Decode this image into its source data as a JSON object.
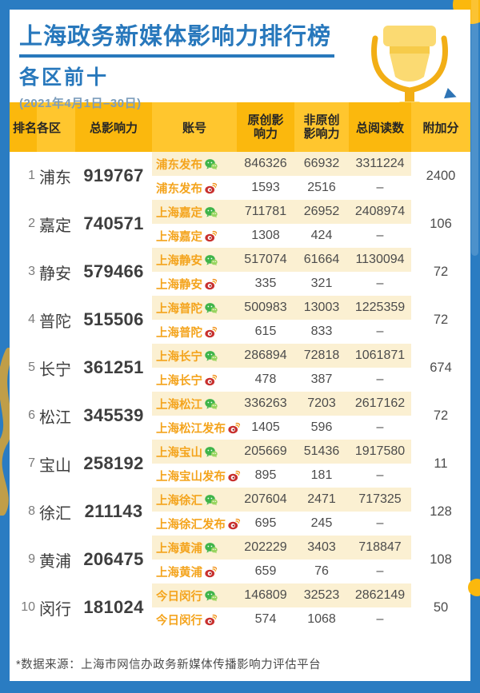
{
  "header": {
    "title": "上海政务新媒体影响力排行榜",
    "subtitle": "各区前十",
    "date_range": "(2021年4月1日–30日)",
    "trophy_icon": "trophy-icon"
  },
  "table": {
    "columns": [
      "排名",
      "各区",
      "总影响力",
      "账号",
      "原创影响力",
      "非原创影响力",
      "总阅读数",
      "附加分"
    ],
    "column_keys": [
      "rank",
      "district",
      "total-influence",
      "account",
      "original-influence",
      "non-original-influence",
      "total-reads",
      "bonus"
    ],
    "rows": [
      {
        "rank": "1",
        "district": "浦东",
        "total": "919767",
        "bonus": "2400",
        "accounts": [
          {
            "name": "浦东发布",
            "platform": "wechat",
            "original": "846326",
            "non_original": "66932",
            "reads": "3311224"
          },
          {
            "name": "浦东发布",
            "platform": "weibo",
            "original": "1593",
            "non_original": "2516",
            "reads": "–"
          }
        ]
      },
      {
        "rank": "2",
        "district": "嘉定",
        "total": "740571",
        "bonus": "106",
        "accounts": [
          {
            "name": "上海嘉定",
            "platform": "wechat",
            "original": "711781",
            "non_original": "26952",
            "reads": "2408974"
          },
          {
            "name": "上海嘉定",
            "platform": "weibo",
            "original": "1308",
            "non_original": "424",
            "reads": "–"
          }
        ]
      },
      {
        "rank": "3",
        "district": "静安",
        "total": "579466",
        "bonus": "72",
        "accounts": [
          {
            "name": "上海静安",
            "platform": "wechat",
            "original": "517074",
            "non_original": "61664",
            "reads": "1130094"
          },
          {
            "name": "上海静安",
            "platform": "weibo",
            "original": "335",
            "non_original": "321",
            "reads": "–"
          }
        ]
      },
      {
        "rank": "4",
        "district": "普陀",
        "total": "515506",
        "bonus": "72",
        "accounts": [
          {
            "name": "上海普陀",
            "platform": "wechat",
            "original": "500983",
            "non_original": "13003",
            "reads": "1225359"
          },
          {
            "name": "上海普陀",
            "platform": "weibo",
            "original": "615",
            "non_original": "833",
            "reads": "–"
          }
        ]
      },
      {
        "rank": "5",
        "district": "长宁",
        "total": "361251",
        "bonus": "674",
        "accounts": [
          {
            "name": "上海长宁",
            "platform": "wechat",
            "original": "286894",
            "non_original": "72818",
            "reads": "1061871"
          },
          {
            "name": "上海长宁",
            "platform": "weibo",
            "original": "478",
            "non_original": "387",
            "reads": "–"
          }
        ]
      },
      {
        "rank": "6",
        "district": "松江",
        "total": "345539",
        "bonus": "72",
        "accounts": [
          {
            "name": "上海松江",
            "platform": "wechat",
            "original": "336263",
            "non_original": "7203",
            "reads": "2617162"
          },
          {
            "name": "上海松江发布",
            "platform": "weibo",
            "original": "1405",
            "non_original": "596",
            "reads": "–"
          }
        ]
      },
      {
        "rank": "7",
        "district": "宝山",
        "total": "258192",
        "bonus": "11",
        "accounts": [
          {
            "name": "上海宝山",
            "platform": "wechat",
            "original": "205669",
            "non_original": "51436",
            "reads": "1917580"
          },
          {
            "name": "上海宝山发布",
            "platform": "weibo",
            "original": "895",
            "non_original": "181",
            "reads": "–"
          }
        ]
      },
      {
        "rank": "8",
        "district": "徐汇",
        "total": "211143",
        "bonus": "128",
        "accounts": [
          {
            "name": "上海徐汇",
            "platform": "wechat",
            "original": "207604",
            "non_original": "2471",
            "reads": "717325"
          },
          {
            "name": "上海徐汇发布",
            "platform": "weibo",
            "original": "695",
            "non_original": "245",
            "reads": "–"
          }
        ]
      },
      {
        "rank": "9",
        "district": "黄浦",
        "total": "206475",
        "bonus": "108",
        "accounts": [
          {
            "name": "上海黄浦",
            "platform": "wechat",
            "original": "202229",
            "non_original": "3403",
            "reads": "718847"
          },
          {
            "name": "上海黄浦",
            "platform": "weibo",
            "original": "659",
            "non_original": "76",
            "reads": "–"
          }
        ]
      },
      {
        "rank": "10",
        "district": "闵行",
        "total": "181024",
        "bonus": "50",
        "accounts": [
          {
            "name": "今日闵行",
            "platform": "wechat",
            "original": "146809",
            "non_original": "32523",
            "reads": "2862149"
          },
          {
            "name": "今日闵行",
            "platform": "weibo",
            "original": "574",
            "non_original": "1068",
            "reads": "–"
          }
        ]
      }
    ]
  },
  "footer": {
    "source_note": "*数据来源：上海市网信办政务新媒体传播影响力评估平台"
  },
  "icons": {
    "wechat": "wechat-icon",
    "weibo": "weibo-icon",
    "trophy": "trophy-icon"
  },
  "colors": {
    "frame_blue": "#2A7CC2",
    "title_blue": "#2878BC",
    "date_blue": "#7C9DBC",
    "header_yellow": "#FBB80D",
    "header_yellow_alt": "#FFC62E",
    "row_highlight": "#FBF0D2",
    "account_orange": "#F4A41D",
    "text_dark": "#3E3E3E",
    "wechat_green": "#3EB44A",
    "weibo_red": "#C8302E"
  }
}
